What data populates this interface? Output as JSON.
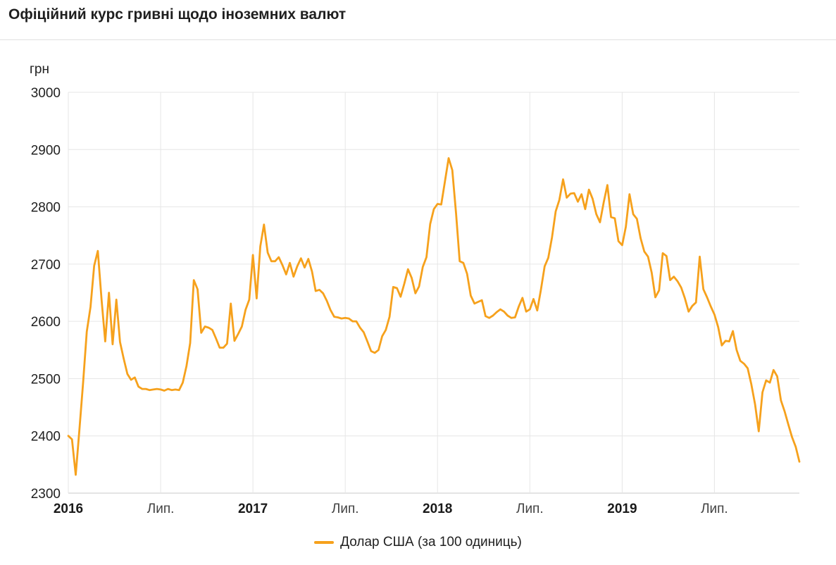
{
  "header": {
    "title": "Офіційний курс гривні щодо іноземних валют"
  },
  "chart_data": {
    "type": "line",
    "title": "Офіційний курс гривні щодо іноземних валют",
    "unit_label": "грн",
    "xlim": [
      2016.0,
      2019.96
    ],
    "ylim": [
      2300,
      3000
    ],
    "grid": true,
    "legend_position": "bottom",
    "y_ticks": [
      2300,
      2400,
      2500,
      2600,
      2700,
      2800,
      2900,
      3000
    ],
    "x_ticks": [
      {
        "x": 2016.0,
        "label": "2016",
        "bold": true
      },
      {
        "x": 2016.5,
        "label": "Лип.",
        "bold": false
      },
      {
        "x": 2017.0,
        "label": "2017",
        "bold": true
      },
      {
        "x": 2017.5,
        "label": "Лип.",
        "bold": false
      },
      {
        "x": 2018.0,
        "label": "2018",
        "bold": true
      },
      {
        "x": 2018.5,
        "label": "Лип.",
        "bold": false
      },
      {
        "x": 2019.0,
        "label": "2019",
        "bold": true
      },
      {
        "x": 2019.5,
        "label": "Лип.",
        "bold": false
      }
    ],
    "series": [
      {
        "name": "Долар США (за 100 одиниць)",
        "color": "#f6a11c",
        "x_start": 2016.0,
        "x_step": 0.02,
        "values": [
          2400,
          2394,
          2332,
          2410,
          2493,
          2582,
          2625,
          2697,
          2723,
          2638,
          2565,
          2650,
          2560,
          2638,
          2564,
          2535,
          2508,
          2498,
          2502,
          2486,
          2482,
          2482,
          2480,
          2481,
          2482,
          2481,
          2479,
          2482,
          2480,
          2481,
          2480,
          2493,
          2522,
          2562,
          2672,
          2656,
          2580,
          2591,
          2589,
          2585,
          2570,
          2554,
          2554,
          2561,
          2631,
          2566,
          2578,
          2591,
          2620,
          2638,
          2716,
          2640,
          2731,
          2769,
          2720,
          2705,
          2705,
          2712,
          2698,
          2682,
          2702,
          2678,
          2696,
          2710,
          2694,
          2709,
          2687,
          2653,
          2655,
          2649,
          2636,
          2620,
          2608,
          2607,
          2605,
          2606,
          2605,
          2600,
          2600,
          2589,
          2581,
          2565,
          2548,
          2545,
          2550,
          2574,
          2585,
          2608,
          2660,
          2658,
          2643,
          2666,
          2691,
          2676,
          2649,
          2661,
          2695,
          2712,
          2770,
          2796,
          2805,
          2804,
          2844,
          2885,
          2864,
          2789,
          2705,
          2702,
          2683,
          2645,
          2631,
          2634,
          2637,
          2609,
          2606,
          2610,
          2616,
          2621,
          2617,
          2610,
          2606,
          2607,
          2626,
          2641,
          2617,
          2621,
          2639,
          2619,
          2655,
          2696,
          2711,
          2747,
          2792,
          2812,
          2848,
          2816,
          2823,
          2824,
          2809,
          2822,
          2796,
          2830,
          2814,
          2787,
          2773,
          2808,
          2838,
          2782,
          2780,
          2740,
          2733,
          2765,
          2822,
          2787,
          2779,
          2745,
          2722,
          2713,
          2685,
          2642,
          2654,
          2719,
          2714,
          2672,
          2678,
          2670,
          2659,
          2640,
          2617,
          2627,
          2633,
          2713,
          2656,
          2642,
          2626,
          2612,
          2590,
          2558,
          2566,
          2565,
          2583,
          2550,
          2531,
          2526,
          2518,
          2490,
          2455,
          2408,
          2476,
          2497,
          2493,
          2515,
          2504,
          2462,
          2443,
          2420,
          2398,
          2381,
          2355
        ]
      }
    ]
  }
}
